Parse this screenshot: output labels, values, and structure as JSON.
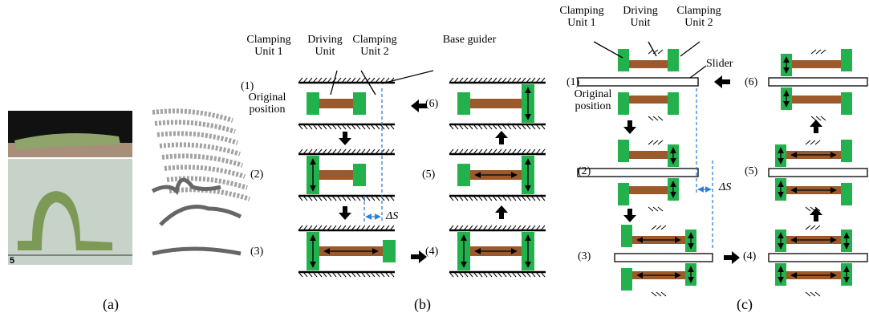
{
  "panel_a": {
    "ruler_label": "5",
    "caption": "(a)"
  },
  "panel_b": {
    "clamping_unit_1": "Clamping Unit 1",
    "driving_unit": "Driving Unit",
    "clamping_unit_2": "Clamping Unit 2",
    "base_guider": "Base guider",
    "original_position": "Original position",
    "delta_s": "ΔS",
    "steps": [
      "(1)",
      "(2)",
      "(3)",
      "(4)",
      "(5)",
      "(6)"
    ],
    "caption": "(b)"
  },
  "panel_c": {
    "clamping_unit_1": "Clamping Unit 1",
    "driving_unit": "Driving Unit",
    "clamping_unit_2": "Clamping Unit 2",
    "slider": "Slider",
    "original_position": "Original position",
    "delta_s": "ΔS",
    "steps": [
      "(1)",
      "(2)",
      "(3)",
      "(4)",
      "(5)",
      "(6)"
    ],
    "caption": "(c)"
  }
}
